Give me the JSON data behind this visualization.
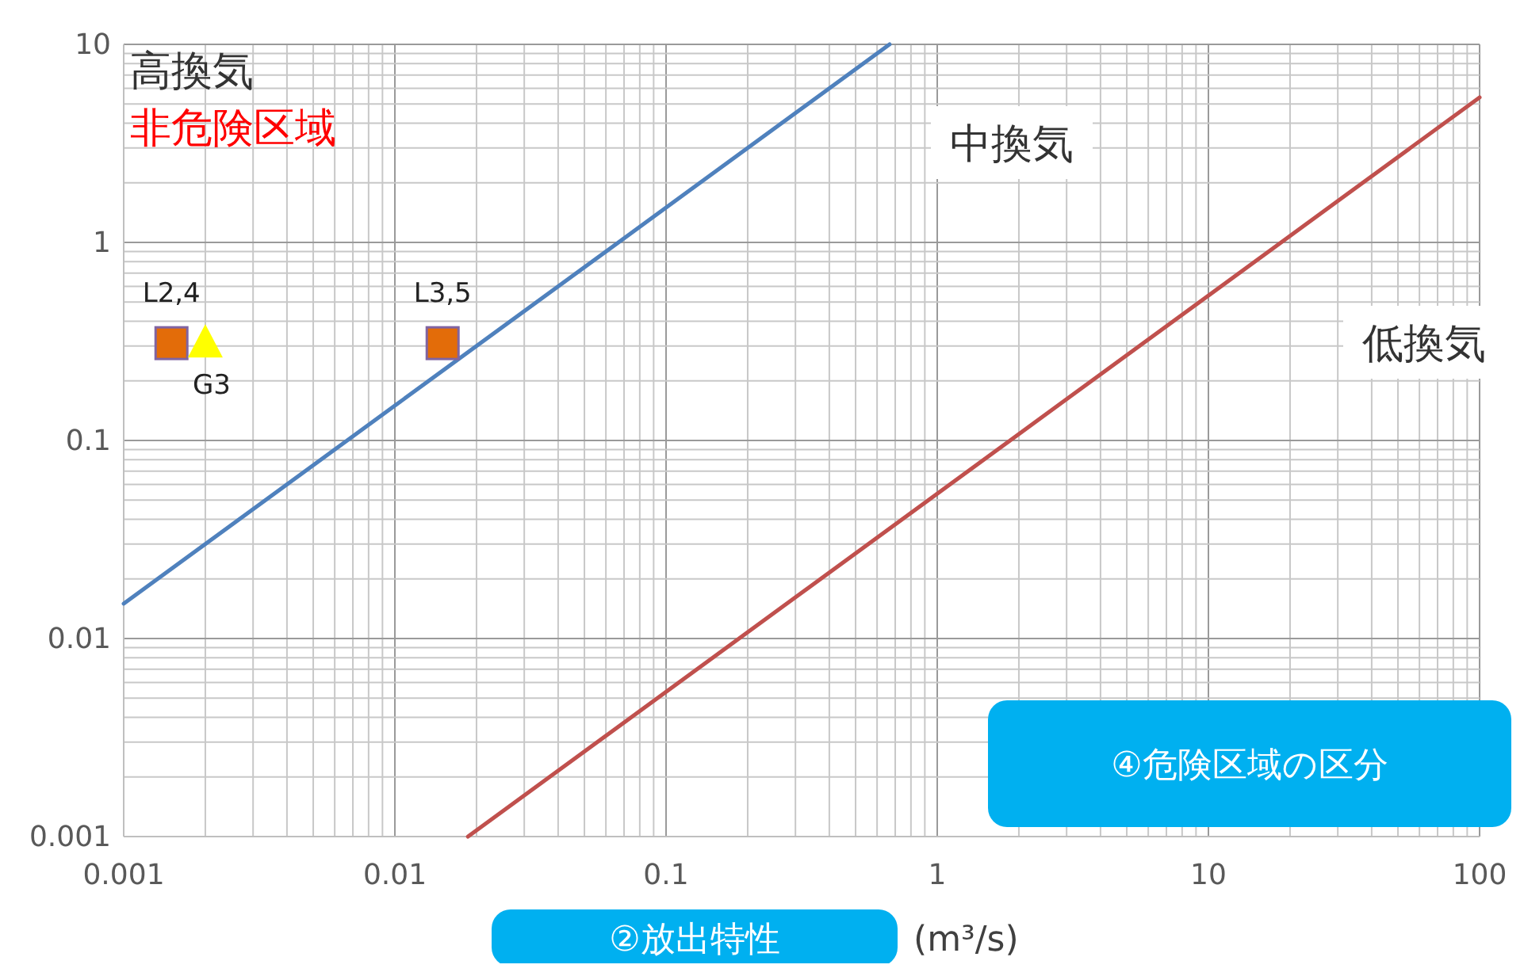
{
  "chart_data": {
    "type": "line",
    "xlabel": "(m³/s)",
    "log": "xy",
    "grid": true,
    "xlim": [
      0.001,
      100
    ],
    "ylim": [
      0.001,
      10
    ],
    "xticks": [
      0.001,
      0.01,
      0.1,
      1,
      10,
      100,
      {
        "value": 0.002,
        "label": null
      },
      {
        "value": 0.003,
        "label": null
      },
      {
        "value": 0.004,
        "label": null
      },
      {
        "value": 0.005,
        "label": null
      },
      {
        "value": 0.006,
        "label": null
      },
      {
        "value": 0.007,
        "label": null
      },
      {
        "value": 0.008,
        "label": null
      },
      {
        "value": 0.009,
        "label": null
      },
      {
        "value": 0.02,
        "label": null
      },
      {
        "value": 0.03,
        "label": null
      },
      {
        "value": 0.04,
        "label": null
      },
      {
        "value": 0.05,
        "label": null
      },
      {
        "value": 0.06,
        "label": null
      },
      {
        "value": 0.07,
        "label": null
      },
      {
        "value": 0.08,
        "label": null
      },
      {
        "value": 0.09,
        "label": null
      },
      {
        "value": 0.2,
        "label": null
      },
      {
        "value": 0.3,
        "label": null
      },
      {
        "value": 0.4,
        "label": null
      },
      {
        "value": 0.5,
        "label": null
      },
      {
        "value": 0.6,
        "label": null
      },
      {
        "value": 0.7,
        "label": null
      },
      {
        "value": 0.8,
        "label": null
      },
      {
        "value": 0.9,
        "label": null
      },
      {
        "value": 2,
        "label": null
      },
      {
        "value": 3,
        "label": null
      },
      {
        "value": 4,
        "label": null
      },
      {
        "value": 5,
        "label": null
      },
      {
        "value": 6,
        "label": null
      },
      {
        "value": 7,
        "label": null
      },
      {
        "value": 8,
        "label": null
      },
      {
        "value": 9,
        "label": null
      },
      {
        "value": 20,
        "label": null
      },
      {
        "value": 30,
        "label": null
      },
      {
        "value": 40,
        "label": null
      },
      {
        "value": 50,
        "label": null
      },
      {
        "value": 60,
        "label": null
      },
      {
        "value": 70,
        "label": null
      },
      {
        "value": 80,
        "label": null
      },
      {
        "value": 90,
        "label": null
      }
    ],
    "yticks": [
      0.001,
      0.01,
      0.1,
      1,
      10,
      {
        "value": 0.002,
        "label": null
      },
      {
        "value": 0.003,
        "label": null
      },
      {
        "value": 0.004,
        "label": null
      },
      {
        "value": 0.005,
        "label": null
      },
      {
        "value": 0.006,
        "label": null
      },
      {
        "value": 0.007,
        "label": null
      },
      {
        "value": 0.008,
        "label": null
      },
      {
        "value": 0.009,
        "label": null
      },
      {
        "value": 0.02,
        "label": null
      },
      {
        "value": 0.03,
        "label": null
      },
      {
        "value": 0.04,
        "label": null
      },
      {
        "value": 0.05,
        "label": null
      },
      {
        "value": 0.06,
        "label": null
      },
      {
        "value": 0.07,
        "label": null
      },
      {
        "value": 0.08,
        "label": null
      },
      {
        "value": 0.09,
        "label": null
      },
      {
        "value": 0.2,
        "label": null
      },
      {
        "value": 0.3,
        "label": null
      },
      {
        "value": 0.4,
        "label": null
      },
      {
        "value": 0.5,
        "label": null
      },
      {
        "value": 0.6,
        "label": null
      },
      {
        "value": 0.7,
        "label": null
      },
      {
        "value": 0.8,
        "label": null
      },
      {
        "value": 0.9,
        "label": null
      },
      {
        "value": 2,
        "label": null
      },
      {
        "value": 3,
        "label": null
      },
      {
        "value": 4,
        "label": null
      },
      {
        "value": 5,
        "label": null
      },
      {
        "value": 6,
        "label": null
      },
      {
        "value": 7,
        "label": null
      },
      {
        "value": 8,
        "label": null
      },
      {
        "value": 9,
        "label": null
      }
    ],
    "series": [
      {
        "color": "#4f81bd",
        "x": [
          0.001,
          0.667
        ],
        "values": [
          0.015,
          10
        ]
      },
      {
        "color": "#c0504d",
        "x": [
          0.0186,
          100
        ],
        "values": [
          0.001,
          5.4
        ]
      },
      {
        "type": "scatter",
        "marker": "square",
        "color": "#e36c09",
        "x": [
          0.0015,
          0.015
        ],
        "values": [
          0.31,
          0.31
        ]
      },
      {
        "type": "scatter",
        "marker": "triangle",
        "color": "#ffff00",
        "x": [
          0.002
        ],
        "values": [
          0.31
        ]
      }
    ],
    "annotations": [
      "高換気",
      "非危険区域",
      "中換気",
      "低換気",
      "④危険区域の区分",
      "②放出特性",
      {
        "text": "L2,4",
        "x": 0.0015,
        "y": 0.31
      },
      {
        "text": "G3",
        "x": 0.002,
        "y": 0.31
      },
      {
        "text": "L3,5",
        "x": 0.015,
        "y": 0.31
      }
    ]
  }
}
